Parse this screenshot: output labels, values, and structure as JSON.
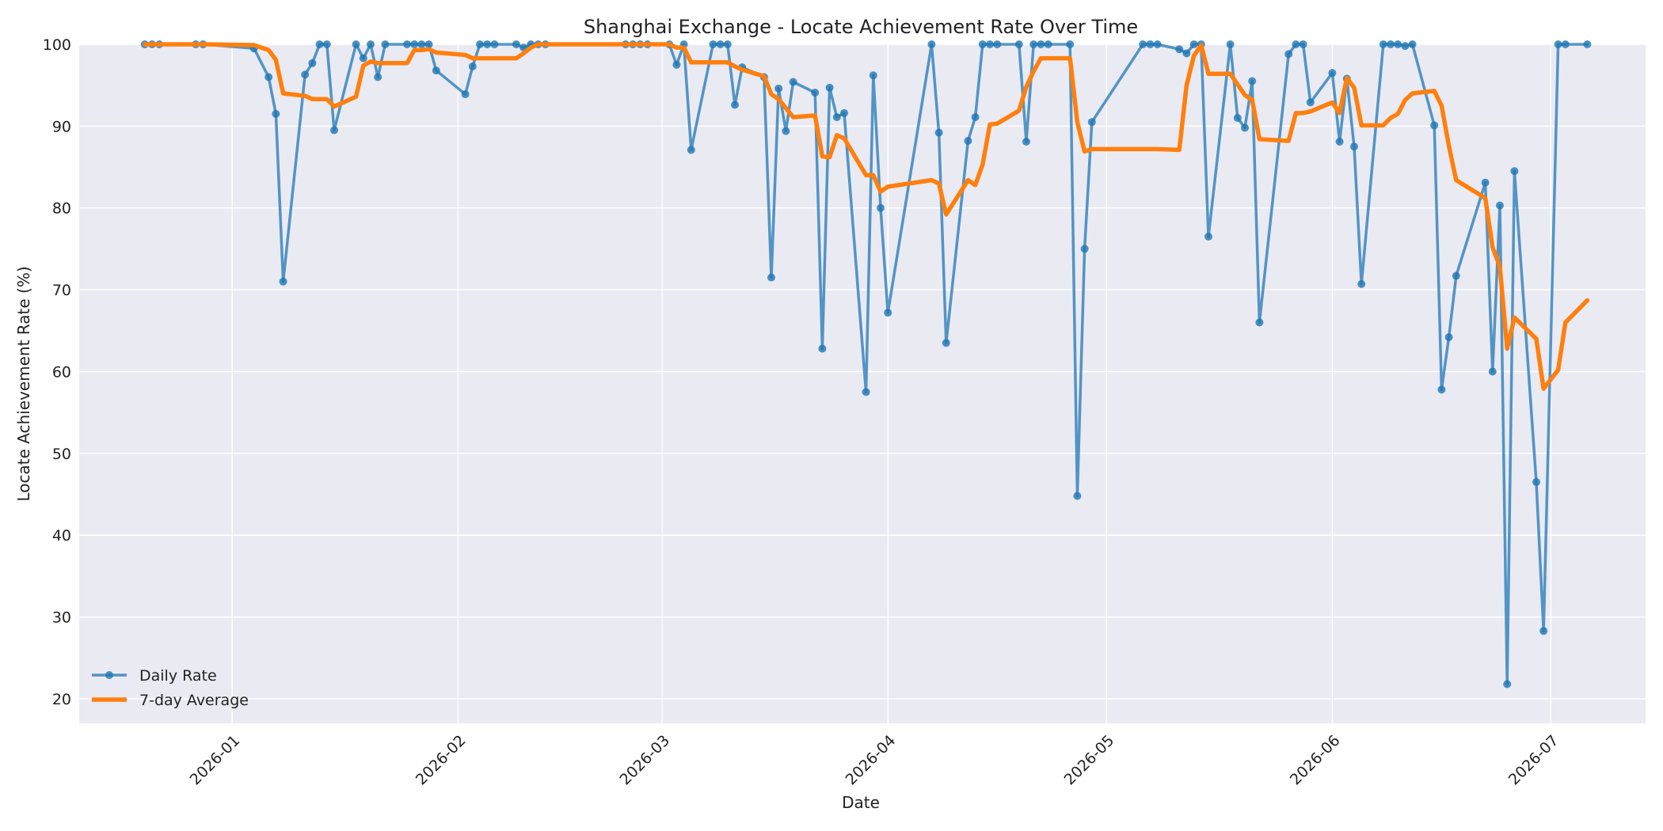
{
  "chart_data": {
    "type": "line",
    "title": "Shanghai Exchange - Locate Achievement Rate Over Time",
    "xlabel": "Date",
    "ylabel": "Locate Achievement Rate (%)",
    "xlim": [
      "2025-12-11",
      "2026-07-14"
    ],
    "ylim": [
      17,
      100
    ],
    "x_ticks": [
      "2026-01-01",
      "2026-02-01",
      "2026-03-01",
      "2026-04-01",
      "2026-05-01",
      "2026-06-01",
      "2026-07-01"
    ],
    "x_tick_labels": [
      "2026-01",
      "2026-02",
      "2026-03",
      "2026-04",
      "2026-05",
      "2026-06",
      "2026-07"
    ],
    "y_ticks": [
      20,
      30,
      40,
      50,
      60,
      70,
      80,
      90,
      100
    ],
    "y_tick_labels": [
      "20",
      "30",
      "40",
      "50",
      "60",
      "70",
      "80",
      "90",
      "100"
    ],
    "grid": true,
    "legend_position": "lower-left",
    "series": [
      {
        "name": "Daily Rate",
        "color": "#1f77b4",
        "marker": "circle",
        "points": [
          [
            "2025-12-20",
            100
          ],
          [
            "2025-12-21",
            100
          ],
          [
            "2025-12-22",
            100
          ],
          [
            "2025-12-27",
            100
          ],
          [
            "2025-12-28",
            100
          ],
          [
            "2026-01-04",
            99.5
          ],
          [
            "2026-01-06",
            96
          ],
          [
            "2026-01-07",
            91.5
          ],
          [
            "2026-01-08",
            71
          ],
          [
            "2026-01-11",
            96.3
          ],
          [
            "2026-01-12",
            97.7
          ],
          [
            "2026-01-13",
            100
          ],
          [
            "2026-01-14",
            100
          ],
          [
            "2026-01-15",
            89.5
          ],
          [
            "2026-01-18",
            100
          ],
          [
            "2026-01-19",
            98.3
          ],
          [
            "2026-01-20",
            100
          ],
          [
            "2026-01-21",
            96
          ],
          [
            "2026-01-22",
            100
          ],
          [
            "2026-01-25",
            100
          ],
          [
            "2026-01-26",
            100
          ],
          [
            "2026-01-27",
            100
          ],
          [
            "2026-01-28",
            100
          ],
          [
            "2026-01-29",
            96.8
          ],
          [
            "2026-02-02",
            93.9
          ],
          [
            "2026-02-03",
            97.3
          ],
          [
            "2026-02-04",
            100
          ],
          [
            "2026-02-05",
            100
          ],
          [
            "2026-02-06",
            100
          ],
          [
            "2026-02-09",
            100
          ],
          [
            "2026-02-10",
            99.6
          ],
          [
            "2026-02-11",
            100
          ],
          [
            "2026-02-12",
            100
          ],
          [
            "2026-02-13",
            100
          ],
          [
            "2026-02-24",
            100
          ],
          [
            "2026-02-25",
            100
          ],
          [
            "2026-02-26",
            100
          ],
          [
            "2026-02-27",
            100
          ],
          [
            "2026-03-02",
            100
          ],
          [
            "2026-03-03",
            97.5
          ],
          [
            "2026-03-04",
            100
          ],
          [
            "2026-03-05",
            87.1
          ],
          [
            "2026-03-08",
            100
          ],
          [
            "2026-03-09",
            100
          ],
          [
            "2026-03-10",
            100
          ],
          [
            "2026-03-11",
            92.6
          ],
          [
            "2026-03-12",
            97.2
          ],
          [
            "2026-03-15",
            96
          ],
          [
            "2026-03-16",
            71.5
          ],
          [
            "2026-03-17",
            94.6
          ],
          [
            "2026-03-18",
            89.4
          ],
          [
            "2026-03-19",
            95.4
          ],
          [
            "2026-03-22",
            94.1
          ],
          [
            "2026-03-23",
            62.8
          ],
          [
            "2026-03-24",
            94.7
          ],
          [
            "2026-03-25",
            91.1
          ],
          [
            "2026-03-26",
            91.6
          ],
          [
            "2026-03-29",
            57.5
          ],
          [
            "2026-03-30",
            96.2
          ],
          [
            "2026-03-31",
            80
          ],
          [
            "2026-04-01",
            67.2
          ],
          [
            "2026-04-07",
            100
          ],
          [
            "2026-04-08",
            89.2
          ],
          [
            "2026-04-09",
            63.5
          ],
          [
            "2026-04-12",
            88.2
          ],
          [
            "2026-04-13",
            91.1
          ],
          [
            "2026-04-14",
            100
          ],
          [
            "2026-04-15",
            100
          ],
          [
            "2026-04-16",
            100
          ],
          [
            "2026-04-19",
            100
          ],
          [
            "2026-04-20",
            88.1
          ],
          [
            "2026-04-21",
            100
          ],
          [
            "2026-04-22",
            100
          ],
          [
            "2026-04-23",
            100
          ],
          [
            "2026-04-26",
            100
          ],
          [
            "2026-04-27",
            44.8
          ],
          [
            "2026-04-28",
            75
          ],
          [
            "2026-04-29",
            90.5
          ],
          [
            "2026-05-06",
            100
          ],
          [
            "2026-05-07",
            100
          ],
          [
            "2026-05-08",
            100
          ],
          [
            "2026-05-11",
            99.4
          ],
          [
            "2026-05-12",
            98.9
          ],
          [
            "2026-05-13",
            100
          ],
          [
            "2026-05-14",
            100
          ],
          [
            "2026-05-15",
            76.5
          ],
          [
            "2026-05-18",
            100
          ],
          [
            "2026-05-19",
            91
          ],
          [
            "2026-05-20",
            89.8
          ],
          [
            "2026-05-21",
            95.5
          ],
          [
            "2026-05-22",
            66
          ],
          [
            "2026-05-26",
            98.8
          ],
          [
            "2026-05-27",
            100
          ],
          [
            "2026-05-28",
            100
          ],
          [
            "2026-05-29",
            92.9
          ],
          [
            "2026-06-01",
            96.5
          ],
          [
            "2026-06-02",
            88.1
          ],
          [
            "2026-06-03",
            95.8
          ],
          [
            "2026-06-04",
            87.5
          ],
          [
            "2026-06-05",
            70.7
          ],
          [
            "2026-06-08",
            100
          ],
          [
            "2026-06-09",
            100
          ],
          [
            "2026-06-10",
            100
          ],
          [
            "2026-06-11",
            99.8
          ],
          [
            "2026-06-12",
            100
          ],
          [
            "2026-06-15",
            90.1
          ],
          [
            "2026-06-16",
            57.8
          ],
          [
            "2026-06-17",
            64.2
          ],
          [
            "2026-06-18",
            71.7
          ],
          [
            "2026-06-22",
            83.1
          ],
          [
            "2026-06-23",
            60
          ],
          [
            "2026-06-24",
            80.3
          ],
          [
            "2026-06-25",
            21.8
          ],
          [
            "2026-06-26",
            84.5
          ],
          [
            "2026-06-29",
            46.5
          ],
          [
            "2026-06-30",
            28.3
          ],
          [
            "2026-07-02",
            100
          ],
          [
            "2026-07-03",
            100
          ],
          [
            "2026-07-06",
            100
          ]
        ]
      },
      {
        "name": "7-day Average",
        "color": "#ff7f0e",
        "marker": "none",
        "points": [
          [
            "2025-12-20",
            100
          ],
          [
            "2025-12-21",
            100
          ],
          [
            "2025-12-22",
            100
          ],
          [
            "2025-12-27",
            100
          ],
          [
            "2025-12-28",
            100
          ],
          [
            "2026-01-04",
            99.9
          ],
          [
            "2026-01-06",
            99.3
          ],
          [
            "2026-01-07",
            98.1
          ],
          [
            "2026-01-08",
            94
          ],
          [
            "2026-01-11",
            93.7
          ],
          [
            "2026-01-12",
            93.3
          ],
          [
            "2026-01-13",
            93.3
          ],
          [
            "2026-01-14",
            93.3
          ],
          [
            "2026-01-15",
            92.4
          ],
          [
            "2026-01-18",
            93.6
          ],
          [
            "2026-01-19",
            97.4
          ],
          [
            "2026-01-20",
            97.9
          ],
          [
            "2026-01-21",
            97.7
          ],
          [
            "2026-01-22",
            97.7
          ],
          [
            "2026-01-25",
            97.7
          ],
          [
            "2026-01-26",
            99.3
          ],
          [
            "2026-01-27",
            99.3
          ],
          [
            "2026-01-28",
            99.4
          ],
          [
            "2026-01-29",
            99
          ],
          [
            "2026-02-02",
            98.7
          ],
          [
            "2026-02-03",
            98.3
          ],
          [
            "2026-02-04",
            98.3
          ],
          [
            "2026-02-05",
            98.3
          ],
          [
            "2026-02-06",
            98.3
          ],
          [
            "2026-02-09",
            98.3
          ],
          [
            "2026-02-10",
            98.9
          ],
          [
            "2026-02-11",
            99.6
          ],
          [
            "2026-02-12",
            100
          ],
          [
            "2026-02-13",
            100
          ],
          [
            "2026-02-24",
            100
          ],
          [
            "2026-02-25",
            100
          ],
          [
            "2026-02-26",
            100
          ],
          [
            "2026-02-27",
            100
          ],
          [
            "2026-03-02",
            100
          ],
          [
            "2026-03-03",
            99.6
          ],
          [
            "2026-03-04",
            99.6
          ],
          [
            "2026-03-05",
            97.8
          ],
          [
            "2026-03-08",
            97.8
          ],
          [
            "2026-03-09",
            97.8
          ],
          [
            "2026-03-10",
            97.8
          ],
          [
            "2026-03-11",
            97.3
          ],
          [
            "2026-03-12",
            96.9
          ],
          [
            "2026-03-15",
            96.1
          ],
          [
            "2026-03-16",
            93.9
          ],
          [
            "2026-03-17",
            93.3
          ],
          [
            "2026-03-18",
            92.2
          ],
          [
            "2026-03-19",
            91.1
          ],
          [
            "2026-03-22",
            91.3
          ],
          [
            "2026-03-23",
            86.3
          ],
          [
            "2026-03-24",
            86.2
          ],
          [
            "2026-03-25",
            88.9
          ],
          [
            "2026-03-26",
            88.5
          ],
          [
            "2026-03-29",
            84
          ],
          [
            "2026-03-30",
            84
          ],
          [
            "2026-03-31",
            82
          ],
          [
            "2026-04-01",
            82.6
          ],
          [
            "2026-04-07",
            83.4
          ],
          [
            "2026-04-08",
            83
          ],
          [
            "2026-04-09",
            79.2
          ],
          [
            "2026-04-12",
            83.4
          ],
          [
            "2026-04-13",
            82.8
          ],
          [
            "2026-04-14",
            85.3
          ],
          [
            "2026-04-15",
            90.2
          ],
          [
            "2026-04-16",
            90.3
          ],
          [
            "2026-04-19",
            91.9
          ],
          [
            "2026-04-20",
            94.8
          ],
          [
            "2026-04-21",
            96.7
          ],
          [
            "2026-04-22",
            98.3
          ],
          [
            "2026-04-23",
            98.3
          ],
          [
            "2026-04-26",
            98.3
          ],
          [
            "2026-04-27",
            90.5
          ],
          [
            "2026-04-28",
            86.9
          ],
          [
            "2026-04-29",
            87.2
          ],
          [
            "2026-05-06",
            87.2
          ],
          [
            "2026-05-07",
            87.2
          ],
          [
            "2026-05-08",
            87.2
          ],
          [
            "2026-05-11",
            87.1
          ],
          [
            "2026-05-12",
            95
          ],
          [
            "2026-05-13",
            98.6
          ],
          [
            "2026-05-14",
            99.9
          ],
          [
            "2026-05-15",
            96.4
          ],
          [
            "2026-05-18",
            96.4
          ],
          [
            "2026-05-19",
            95.1
          ],
          [
            "2026-05-20",
            93.8
          ],
          [
            "2026-05-21",
            93.2
          ],
          [
            "2026-05-22",
            88.4
          ],
          [
            "2026-05-26",
            88.2
          ],
          [
            "2026-05-27",
            91.6
          ],
          [
            "2026-05-28",
            91.6
          ],
          [
            "2026-05-29",
            91.8
          ],
          [
            "2026-06-01",
            92.9
          ],
          [
            "2026-06-02",
            91.6
          ],
          [
            "2026-06-03",
            95.9
          ],
          [
            "2026-06-04",
            94.7
          ],
          [
            "2026-06-05",
            90.1
          ],
          [
            "2026-06-08",
            90.1
          ],
          [
            "2026-06-09",
            91
          ],
          [
            "2026-06-10",
            91.5
          ],
          [
            "2026-06-11",
            93.2
          ],
          [
            "2026-06-12",
            94
          ],
          [
            "2026-06-15",
            94.3
          ],
          [
            "2026-06-16",
            92.5
          ],
          [
            "2026-06-17",
            87.6
          ],
          [
            "2026-06-18",
            83.4
          ],
          [
            "2026-06-22",
            81.2
          ],
          [
            "2026-06-23",
            75.2
          ],
          [
            "2026-06-24",
            72.8
          ],
          [
            "2026-06-25",
            62.8
          ],
          [
            "2026-06-26",
            66.6
          ],
          [
            "2026-06-29",
            64
          ],
          [
            "2026-06-30",
            57.9
          ],
          [
            "2026-07-02",
            60.2
          ],
          [
            "2026-07-03",
            66
          ],
          [
            "2026-07-06",
            68.7
          ]
        ]
      }
    ]
  }
}
